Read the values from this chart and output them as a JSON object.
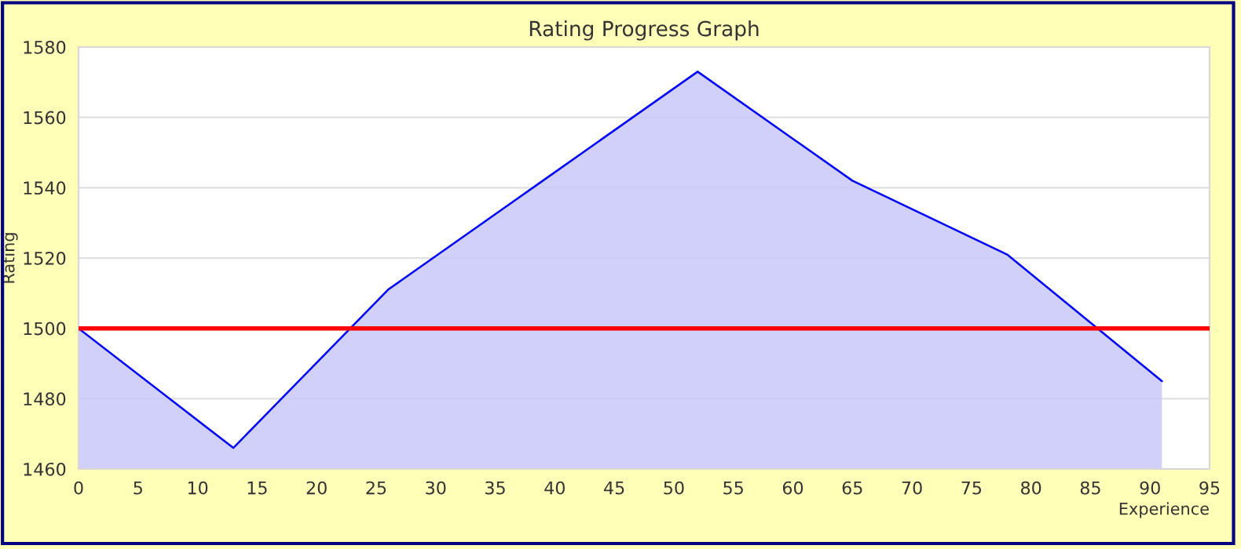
{
  "chart_data": {
    "type": "area",
    "title": "Rating Progress Graph",
    "xlabel": "Experience",
    "ylabel": "Rating",
    "x": [
      0,
      13,
      26,
      39,
      52,
      65,
      78,
      91
    ],
    "series": [
      {
        "color": "#0000ff",
        "values": [
          1500,
          1466,
          1511,
          1542,
          1573,
          1542,
          1521,
          1485
        ]
      }
    ],
    "xlim": [
      0,
      95
    ],
    "xticks": [
      0,
      5,
      10,
      15,
      20,
      25,
      30,
      35,
      40,
      45,
      50,
      55,
      60,
      65,
      70,
      75,
      80,
      85,
      90,
      95
    ],
    "ylim": [
      1460,
      1580
    ],
    "yticks": [
      1460,
      1480,
      1500,
      1520,
      1540,
      1560,
      1580
    ],
    "ref_lines": [
      {
        "axis": "y",
        "value": 1500,
        "color": "#ff0000"
      }
    ],
    "grid": "y",
    "legend": false
  }
}
